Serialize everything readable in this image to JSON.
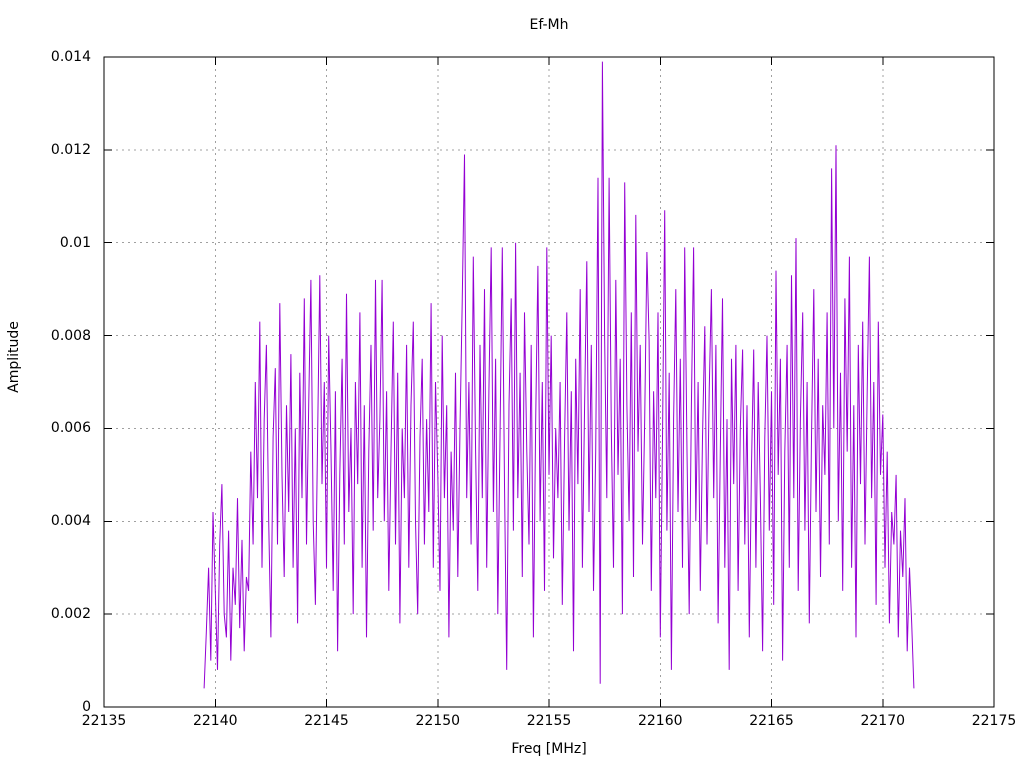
{
  "page": {
    "background": "#ffffff"
  },
  "chart_data": {
    "type": "line",
    "title": "Ef-Mh",
    "xlabel": "Freq [MHz]",
    "ylabel": "Amplitude",
    "xlim": [
      22135,
      22175
    ],
    "ylim": [
      0,
      0.014
    ],
    "x_ticks": [
      22135,
      22140,
      22145,
      22150,
      22155,
      22160,
      22165,
      22170,
      22175
    ],
    "x_tick_labels": [
      "22135",
      "22140",
      "22145",
      "22150",
      "22155",
      "22160",
      "22165",
      "22170",
      "22175"
    ],
    "y_ticks": [
      0,
      0.002,
      0.004,
      0.006,
      0.008,
      0.01,
      0.012,
      0.014
    ],
    "y_tick_labels": [
      "0",
      "0.002",
      "0.004",
      "0.006",
      "0.008",
      "0.01",
      "0.012",
      "0.014"
    ],
    "grid": true,
    "grid_style": "dotted",
    "legend": "none",
    "line_color": "#9400d3",
    "grid_color": "#a0a0a0",
    "frame_color": "#000000",
    "signal_band": [
      22139.5,
      22171.4
    ],
    "notable_peaks": [
      {
        "freq": 22157.4,
        "amplitude": 0.0139
      },
      {
        "freq": 22167.9,
        "amplitude": 0.0121
      },
      {
        "freq": 22151.2,
        "amplitude": 0.0119
      },
      {
        "freq": 22157.2,
        "amplitude": 0.0114
      },
      {
        "freq": 22158.4,
        "amplitude": 0.0113
      },
      {
        "freq": 22160.2,
        "amplitude": 0.0107
      },
      {
        "freq": 22166.1,
        "amplitude": 0.0101
      }
    ],
    "series": [
      {
        "name": "Ef-Mh",
        "x_start": 22139.5,
        "x_step": 0.1,
        "n_points": 320,
        "amplitude_unit": 0.0001,
        "values": [
          4,
          16,
          30,
          10,
          42,
          25,
          8,
          35,
          48,
          20,
          15,
          38,
          10,
          30,
          22,
          45,
          17,
          36,
          12,
          28,
          25,
          55,
          35,
          70,
          45,
          83,
          30,
          62,
          78,
          40,
          15,
          58,
          73,
          35,
          87,
          50,
          28,
          65,
          42,
          76,
          30,
          60,
          18,
          72,
          45,
          88,
          35,
          65,
          92,
          40,
          22,
          58,
          93,
          48,
          70,
          30,
          80,
          55,
          25,
          68,
          12,
          50,
          75,
          35,
          89,
          42,
          60,
          20,
          70,
          48,
          85,
          30,
          65,
          15,
          55,
          78,
          38,
          92,
          45,
          62,
          92,
          40,
          68,
          25,
          55,
          83,
          35,
          72,
          18,
          60,
          45,
          78,
          30,
          65,
          83,
          40,
          20,
          58,
          75,
          35,
          62,
          42,
          87,
          30,
          70,
          50,
          25,
          80,
          45,
          65,
          15,
          55,
          38,
          72,
          28,
          60,
          87,
          119,
          45,
          70,
          35,
          97,
          55,
          25,
          78,
          45,
          90,
          30,
          68,
          99,
          42,
          75,
          20,
          58,
          99,
          48,
          8,
          65,
          88,
          38,
          100,
          45,
          72,
          28,
          85,
          55,
          35,
          78,
          15,
          62,
          95,
          40,
          70,
          25,
          99,
          50,
          80,
          32,
          60,
          45,
          70,
          22,
          58,
          85,
          38,
          68,
          12,
          75,
          48,
          90,
          30,
          65,
          96,
          42,
          78,
          25,
          55,
          114,
          5,
          139,
          80,
          45,
          114,
          60,
          30,
          92,
          50,
          75,
          20,
          113,
          65,
          40,
          85,
          28,
          106,
          55,
          78,
          35,
          62,
          98,
          79,
          25,
          68,
          45,
          85,
          15,
          58,
          107,
          38,
          72,
          8,
          62,
          90,
          42,
          75,
          30,
          99,
          55,
          20,
          65,
          99,
          40,
          70,
          25,
          58,
          82,
          35,
          68,
          90,
          45,
          78,
          18,
          55,
          88,
          30,
          62,
          8,
          75,
          48,
          78,
          25,
          60,
          77,
          35,
          65,
          15,
          52,
          77,
          30,
          70,
          45,
          12,
          58,
          80,
          38,
          68,
          22,
          94,
          50,
          75,
          10,
          55,
          78,
          30,
          93,
          45,
          101,
          25,
          62,
          85,
          38,
          70,
          18,
          58,
          90,
          42,
          75,
          28,
          65,
          50,
          85,
          35,
          116,
          60,
          121,
          40,
          72,
          25,
          88,
          55,
          97,
          30,
          65,
          15,
          78,
          48,
          83,
          35,
          68,
          97,
          45,
          70,
          22,
          83,
          50,
          63,
          30,
          55,
          18,
          42,
          35,
          50,
          15,
          38,
          28,
          45,
          12,
          30,
          18,
          4
        ]
      }
    ]
  }
}
